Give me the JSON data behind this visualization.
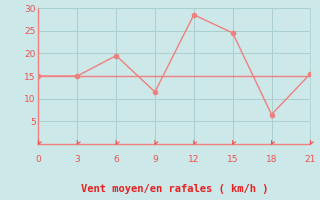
{
  "x": [
    0,
    3,
    6,
    9,
    12,
    15,
    18,
    21
  ],
  "y_line1": [
    15,
    15,
    19.5,
    11.5,
    28.5,
    24.5,
    6.5,
    15.5
  ],
  "y_line2_y": 15,
  "line_color": "#f08080",
  "bg_color": "#cce8e8",
  "grid_color": "#aacfcf",
  "axis_color": "#f08080",
  "tick_color": "#f05050",
  "xlabel": "Vent moyen/en rafales ( km/h )",
  "xlabel_color": "#e82020",
  "xlabel_fontsize": 7.5,
  "xlim": [
    0,
    21
  ],
  "ylim": [
    0,
    30
  ],
  "xticks": [
    0,
    3,
    6,
    9,
    12,
    15,
    18,
    21
  ],
  "yticks": [
    5,
    10,
    15,
    20,
    25,
    30
  ],
  "marker_size": 3,
  "line_width": 1.0
}
